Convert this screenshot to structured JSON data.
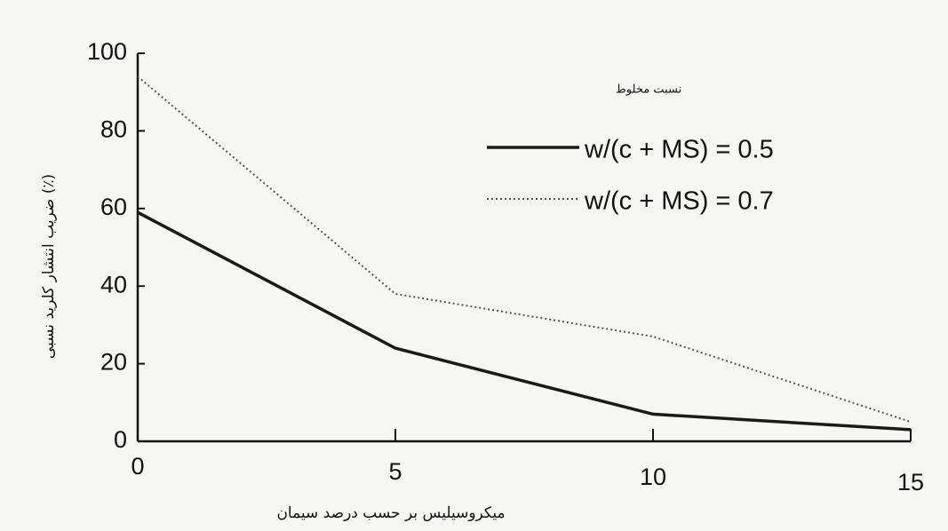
{
  "chart_data": {
    "type": "line",
    "x_label": "میکروسیلیس بر حسب درصد سیمان",
    "y_label": "ضریب انتشار کلرید نسبی (٪)",
    "legend_title": "نسبت مخلوط",
    "x": [
      0,
      5,
      10,
      15
    ],
    "series": [
      {
        "name": "w/(c + MS) = 0.5",
        "color": "#1a1a1a",
        "line_style": "solid",
        "values": [
          59,
          24,
          7,
          3
        ]
      },
      {
        "name": "w/(c + MS) = 0.7",
        "color": "#555555",
        "line_style": "dotted",
        "values": [
          94,
          38,
          27,
          5
        ]
      }
    ],
    "xlim": [
      0,
      15
    ],
    "xticks": [
      0,
      5,
      10,
      15
    ],
    "ylim": [
      0,
      100
    ],
    "yticks": [
      0,
      20,
      40,
      60,
      80,
      100
    ],
    "grid": false,
    "legend_position": "upper right"
  }
}
